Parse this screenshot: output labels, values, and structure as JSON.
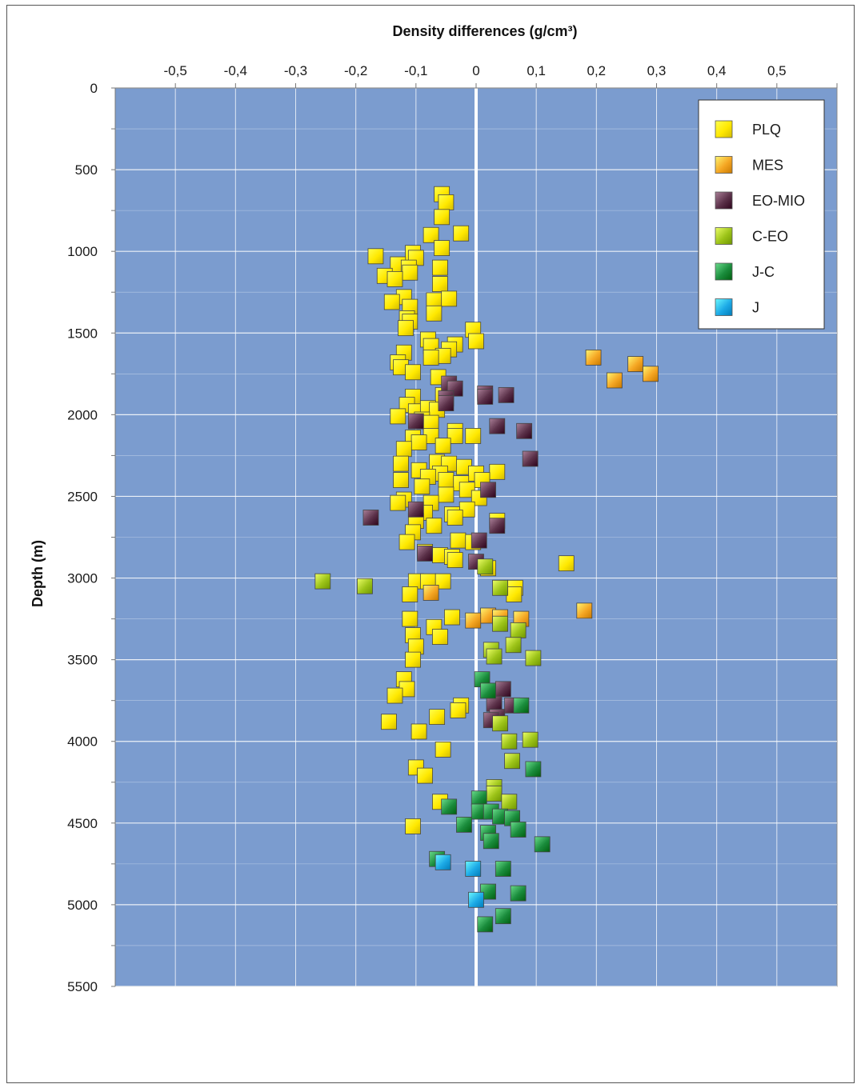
{
  "chart_data": {
    "type": "scatter",
    "title": "",
    "xlabel": "Density differences (g/cm³)",
    "ylabel": "Depth (m)",
    "xlim": [
      -0.6,
      0.6
    ],
    "ylim": [
      0,
      5500
    ],
    "x_axis_position": "top",
    "y_axis_inverted": true,
    "x_tick_labels": [
      "-0,5",
      "-0,4",
      "-0,3",
      "-0,2",
      "-0,1",
      "0",
      "0,1",
      "0,2",
      "0,3",
      "0,4",
      "0,5"
    ],
    "x_tick_values": [
      -0.5,
      -0.4,
      -0.3,
      -0.2,
      -0.1,
      0,
      0.1,
      0.2,
      0.3,
      0.4,
      0.5
    ],
    "y_tick_labels": [
      "0",
      "500",
      "1000",
      "1500",
      "2000",
      "2500",
      "3000",
      "3500",
      "4000",
      "4500",
      "5000",
      "5500"
    ],
    "y_tick_values": [
      0,
      500,
      1000,
      1500,
      2000,
      2500,
      3000,
      3500,
      4000,
      4500,
      5000,
      5500
    ],
    "grid": true,
    "zero_line": true,
    "plot_background": "#7b9ccf",
    "legend_position": "top-right",
    "series": [
      {
        "name": "PLQ",
        "color": "#ffe800",
        "points": [
          [
            -0.057,
            650
          ],
          [
            -0.05,
            700
          ],
          [
            -0.057,
            790
          ],
          [
            -0.075,
            900
          ],
          [
            -0.025,
            890
          ],
          [
            -0.057,
            980
          ],
          [
            -0.167,
            1030
          ],
          [
            -0.105,
            1010
          ],
          [
            -0.1,
            1040
          ],
          [
            -0.13,
            1080
          ],
          [
            -0.112,
            1100
          ],
          [
            -0.06,
            1100
          ],
          [
            -0.152,
            1150
          ],
          [
            -0.11,
            1130
          ],
          [
            -0.135,
            1170
          ],
          [
            -0.06,
            1200
          ],
          [
            -0.12,
            1280
          ],
          [
            -0.14,
            1310
          ],
          [
            -0.07,
            1300
          ],
          [
            -0.045,
            1290
          ],
          [
            -0.11,
            1340
          ],
          [
            -0.07,
            1380
          ],
          [
            -0.115,
            1410
          ],
          [
            -0.11,
            1430
          ],
          [
            -0.117,
            1470
          ],
          [
            -0.005,
            1480
          ],
          [
            0,
            1550
          ],
          [
            -0.08,
            1540
          ],
          [
            -0.035,
            1570
          ],
          [
            -0.045,
            1600
          ],
          [
            -0.075,
            1580
          ],
          [
            -0.12,
            1620
          ],
          [
            -0.055,
            1640
          ],
          [
            -0.075,
            1650
          ],
          [
            -0.13,
            1680
          ],
          [
            -0.125,
            1710
          ],
          [
            -0.105,
            1740
          ],
          [
            -0.063,
            1770
          ],
          [
            -0.055,
            1880
          ],
          [
            -0.105,
            1890
          ],
          [
            -0.115,
            1940
          ],
          [
            -0.1,
            1980
          ],
          [
            -0.08,
            1960
          ],
          [
            -0.065,
            1970
          ],
          [
            -0.13,
            2010
          ],
          [
            -0.09,
            2030
          ],
          [
            -0.075,
            2050
          ],
          [
            -0.035,
            2100
          ],
          [
            -0.105,
            2140
          ],
          [
            -0.075,
            2130
          ],
          [
            -0.035,
            2130
          ],
          [
            -0.005,
            2130
          ],
          [
            -0.095,
            2170
          ],
          [
            -0.055,
            2190
          ],
          [
            -0.12,
            2210
          ],
          [
            -0.065,
            2290
          ],
          [
            -0.045,
            2300
          ],
          [
            -0.125,
            2300
          ],
          [
            -0.02,
            2320
          ],
          [
            -0.095,
            2340
          ],
          [
            -0.06,
            2360
          ],
          [
            0.035,
            2350
          ],
          [
            0,
            2360
          ],
          [
            -0.08,
            2380
          ],
          [
            -0.05,
            2400
          ],
          [
            0.01,
            2400
          ],
          [
            -0.125,
            2400
          ],
          [
            -0.025,
            2420
          ],
          [
            -0.09,
            2440
          ],
          [
            -0.015,
            2460
          ],
          [
            -0.05,
            2490
          ],
          [
            -0.12,
            2520
          ],
          [
            -0.075,
            2540
          ],
          [
            0.005,
            2510
          ],
          [
            -0.13,
            2540
          ],
          [
            -0.015,
            2580
          ],
          [
            -0.085,
            2600
          ],
          [
            -0.04,
            2610
          ],
          [
            -0.035,
            2630
          ],
          [
            0.035,
            2650
          ],
          [
            -0.1,
            2650
          ],
          [
            -0.07,
            2680
          ],
          [
            -0.105,
            2720
          ],
          [
            -0.03,
            2770
          ],
          [
            -0.115,
            2780
          ],
          [
            -0.005,
            2780
          ],
          [
            -0.085,
            2840
          ],
          [
            -0.06,
            2860
          ],
          [
            -0.04,
            2870
          ],
          [
            -0.035,
            2890
          ],
          [
            0.02,
            2940
          ],
          [
            -0.1,
            3020
          ],
          [
            -0.08,
            3020
          ],
          [
            -0.055,
            3020
          ],
          [
            0.065,
            3060
          ],
          [
            -0.11,
            3100
          ],
          [
            0.063,
            3100
          ],
          [
            -0.04,
            3240
          ],
          [
            -0.11,
            3250
          ],
          [
            -0.07,
            3300
          ],
          [
            -0.105,
            3350
          ],
          [
            -0.06,
            3360
          ],
          [
            -0.1,
            3420
          ],
          [
            -0.105,
            3500
          ],
          [
            -0.12,
            3620
          ],
          [
            -0.115,
            3680
          ],
          [
            -0.135,
            3720
          ],
          [
            -0.025,
            3780
          ],
          [
            -0.03,
            3810
          ],
          [
            -0.065,
            3850
          ],
          [
            -0.145,
            3880
          ],
          [
            -0.095,
            3940
          ],
          [
            -0.055,
            4050
          ],
          [
            -0.1,
            4160
          ],
          [
            -0.085,
            4210
          ],
          [
            -0.06,
            4370
          ],
          [
            -0.105,
            4520
          ],
          [
            0.15,
            2910
          ]
        ]
      },
      {
        "name": "MES",
        "color": "#f5a623",
        "points": [
          [
            0.195,
            1650
          ],
          [
            0.265,
            1690
          ],
          [
            0.29,
            1750
          ],
          [
            0.23,
            1790
          ],
          [
            -0.075,
            3090
          ],
          [
            0.18,
            3200
          ],
          [
            0.02,
            3230
          ],
          [
            0.04,
            3240
          ],
          [
            0.075,
            3250
          ],
          [
            -0.005,
            3260
          ]
        ]
      },
      {
        "name": "EO-MIO",
        "color": "#5a3048",
        "points": [
          [
            -0.045,
            1810
          ],
          [
            -0.035,
            1840
          ],
          [
            0.015,
            1870
          ],
          [
            0.05,
            1880
          ],
          [
            0.015,
            1890
          ],
          [
            -0.05,
            1900
          ],
          [
            -0.05,
            1930
          ],
          [
            -0.1,
            2040
          ],
          [
            0.035,
            2070
          ],
          [
            0.08,
            2100
          ],
          [
            0.09,
            2270
          ],
          [
            0.02,
            2460
          ],
          [
            -0.1,
            2580
          ],
          [
            -0.175,
            2630
          ],
          [
            0.035,
            2680
          ],
          [
            0.005,
            2770
          ],
          [
            -0.085,
            2850
          ],
          [
            0,
            2900
          ],
          [
            0.045,
            3680
          ],
          [
            0.03,
            3770
          ],
          [
            0.06,
            3780
          ],
          [
            0.035,
            3850
          ],
          [
            0.025,
            3870
          ]
        ]
      },
      {
        "name": "C-EO",
        "color": "#9cc318",
        "points": [
          [
            -0.255,
            3020
          ],
          [
            -0.185,
            3050
          ],
          [
            0.015,
            2930
          ],
          [
            0.04,
            3060
          ],
          [
            0.04,
            3280
          ],
          [
            0.07,
            3320
          ],
          [
            0.025,
            3440
          ],
          [
            0.062,
            3410
          ],
          [
            0.03,
            3480
          ],
          [
            0.095,
            3490
          ],
          [
            0.04,
            3890
          ],
          [
            0.055,
            4000
          ],
          [
            0.09,
            3990
          ],
          [
            0.06,
            4120
          ],
          [
            0.03,
            4280
          ],
          [
            0.03,
            4320
          ],
          [
            0.055,
            4370
          ]
        ]
      },
      {
        "name": "J-C",
        "color": "#1a8c3c",
        "points": [
          [
            0.01,
            3620
          ],
          [
            0.02,
            3690
          ],
          [
            0.075,
            3780
          ],
          [
            0.095,
            4170
          ],
          [
            -0.045,
            4400
          ],
          [
            0.005,
            4350
          ],
          [
            0.005,
            4430
          ],
          [
            0.025,
            4430
          ],
          [
            0.04,
            4460
          ],
          [
            0.06,
            4470
          ],
          [
            0.07,
            4540
          ],
          [
            -0.02,
            4510
          ],
          [
            0.02,
            4560
          ],
          [
            0.025,
            4610
          ],
          [
            0.11,
            4630
          ],
          [
            -0.065,
            4720
          ],
          [
            0.045,
            4780
          ],
          [
            0.02,
            4920
          ],
          [
            0.07,
            4930
          ],
          [
            0.045,
            5070
          ],
          [
            0.015,
            5120
          ]
        ]
      },
      {
        "name": "J",
        "color": "#1ca9e6",
        "points": [
          [
            -0.055,
            4740
          ],
          [
            -0.005,
            4780
          ],
          [
            0,
            4970
          ]
        ]
      }
    ]
  }
}
